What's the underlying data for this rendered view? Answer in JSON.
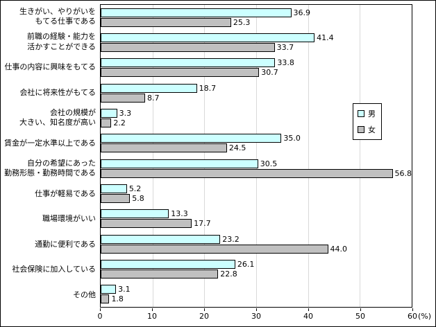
{
  "chart_data": {
    "type": "bar",
    "orientation": "horizontal",
    "title": "",
    "xlabel": "",
    "ylabel": "",
    "x_unit": "(%)",
    "xlim": [
      0,
      60
    ],
    "xticks": [
      0,
      10,
      20,
      30,
      40,
      50,
      60
    ],
    "grid": true,
    "legend_position": "right",
    "categories": [
      "生きがい、やりがいを\nもてる仕事である",
      "前職の経験・能力を\n活かすことができる",
      "仕事の内容に興味をもてる",
      "会社に将来性がもてる",
      "会社の規模が\n大きい、知名度が高い",
      "賃金が一定水準以上である",
      "自分の希望にあった\n勤務形態・勤務時間である",
      "仕事が軽易である",
      "職場環境がいい",
      "通勤に便利である",
      "社会保険に加入している",
      "その他"
    ],
    "series": [
      {
        "name": "男",
        "color": "#CCFFFF",
        "values": [
          36.9,
          41.4,
          33.8,
          18.7,
          3.3,
          35.0,
          30.5,
          5.2,
          13.3,
          23.2,
          26.1,
          3.1
        ]
      },
      {
        "name": "女",
        "color": "#C0C0C0",
        "values": [
          25.3,
          33.7,
          30.7,
          8.7,
          2.2,
          24.5,
          56.8,
          5.8,
          17.7,
          44.0,
          22.8,
          1.8
        ]
      }
    ]
  }
}
